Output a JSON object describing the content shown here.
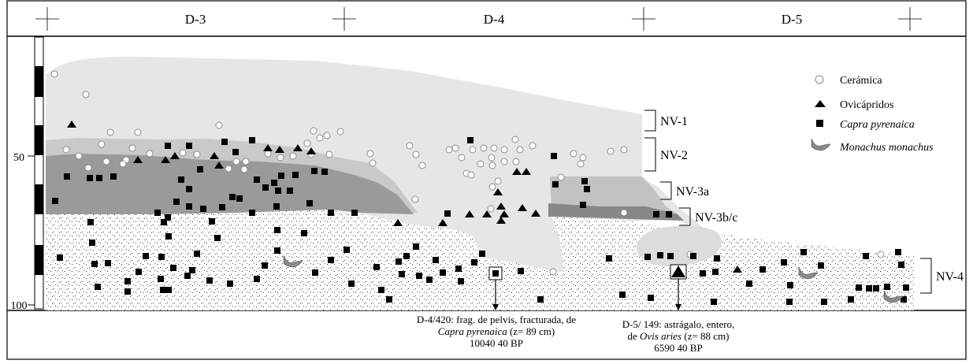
{
  "grid": {
    "squares": [
      "D-3",
      "D-4",
      "D-5"
    ]
  },
  "depth_scale": {
    "ticks": [
      "50",
      "100"
    ]
  },
  "legend": {
    "ceramica": {
      "label": "Cerámica",
      "icon": "open-circle-icon"
    },
    "ovicaprids": {
      "label": "Ovicápridos",
      "icon": "triangle-icon"
    },
    "capra": {
      "label": "Capra pyrenaica",
      "icon": "square-icon"
    },
    "monachus": {
      "label": "Monachus monachus",
      "icon": "seal-bone-icon"
    }
  },
  "levels": [
    "NV-1",
    "NV-2",
    "NV-3a",
    "NV-3b/c",
    "NV-4"
  ],
  "annotations": {
    "left": {
      "line1": "D-4/420: frag. de pelvis, fracturada, de",
      "line2_taxon": "Capra pyrenaica",
      "line2_rest": " (z= 89 cm)",
      "line3": "10040  40 BP"
    },
    "right": {
      "line1": "D-5/ 149: astrágalo, entero,",
      "line2_pre": "de ",
      "line2_taxon": "Ovis aries",
      "line2_rest": " (z= 88 cm)",
      "line3": "6590  40  BP"
    }
  },
  "colors": {
    "nv1": "#e6e6e6",
    "nv2": "#c9c9c9",
    "nv3a": "#9a9a9a",
    "nv3bc": "#888888",
    "intrusion": "#dcdcdc",
    "seal": "#8a8a8a"
  }
}
